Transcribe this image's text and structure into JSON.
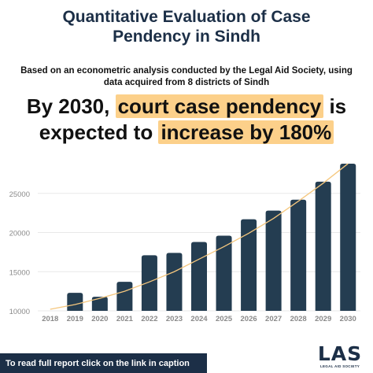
{
  "header": {
    "title_line1": "Quantitative Evaluation of Case",
    "title_line2": "Pendency in Sindh",
    "subtitle_line1": "Based on an econometric analysis conducted by the Legal Aid Society, using",
    "subtitle_line2": "data acquired from 8 districts of Sindh"
  },
  "headline": {
    "part1": "By 2030, ",
    "highlight1": "court case pendency",
    "part2": " is",
    "part3": "expected to ",
    "highlight2": "increase by 180%"
  },
  "footer": {
    "text": "To read full report click on the link in caption"
  },
  "logo": {
    "main": "LAS",
    "sub": "LEGAL AID SOCIETY"
  },
  "colors": {
    "bar": "#243d51",
    "trend": "#f5c77e",
    "highlight": "#fcd08a",
    "title": "#1c2f47",
    "axis_text": "#8a8a8a",
    "grid": "#e8e8e8"
  },
  "chart_data": {
    "type": "bar",
    "categories": [
      "2018",
      "2019",
      "2020",
      "2021",
      "2022",
      "2023",
      "2024",
      "2025",
      "2026",
      "2027",
      "2028",
      "2029",
      "2030"
    ],
    "values": [
      null,
      12300,
      11800,
      13700,
      17100,
      17400,
      18800,
      19600,
      21700,
      22800,
      24200,
      26500,
      28800
    ],
    "trendline": [
      10200,
      10800,
      11600,
      12500,
      13700,
      15000,
      16600,
      18200,
      19900,
      21800,
      24000,
      26300,
      28800
    ],
    "ylim": [
      10000,
      30000
    ],
    "yticks": [
      10000,
      15000,
      20000,
      25000
    ],
    "ytick_labels": [
      "10000",
      "15000",
      "20000",
      "25000"
    ],
    "grid": true,
    "legend": "none"
  }
}
